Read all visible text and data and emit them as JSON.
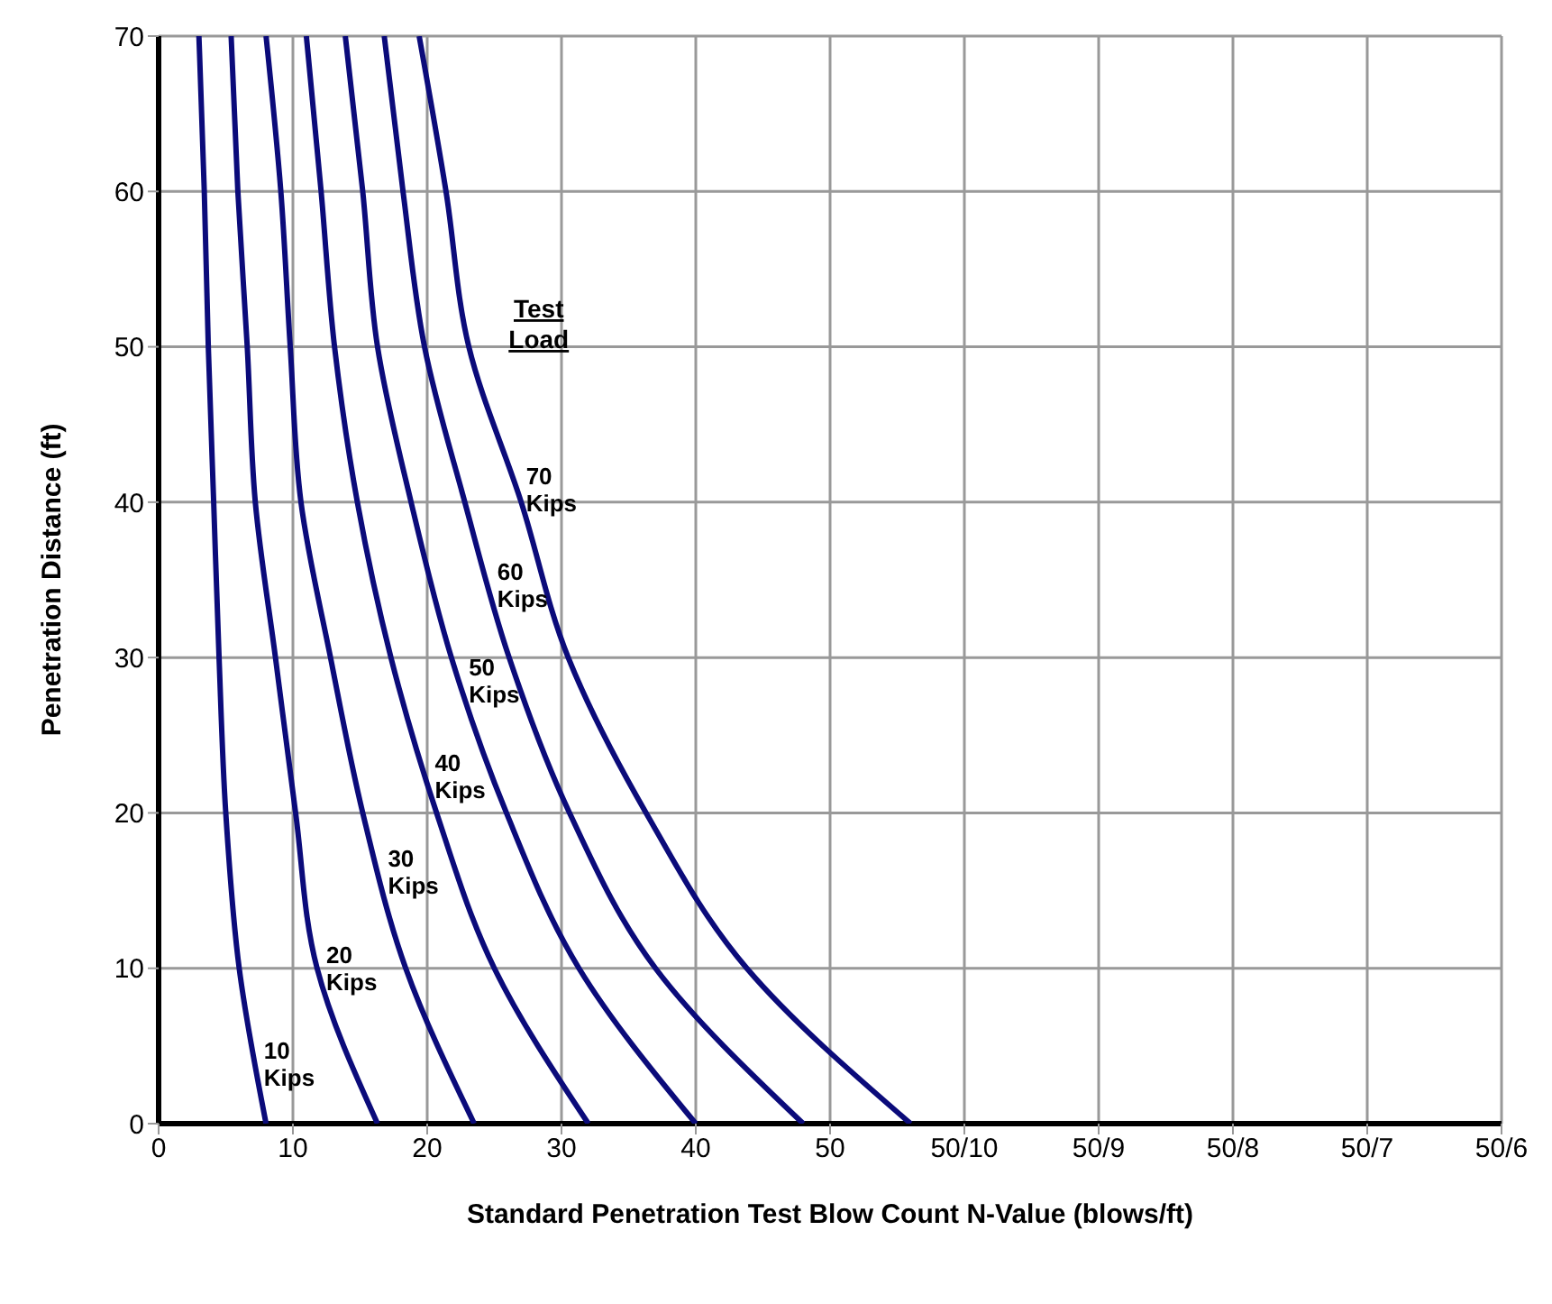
{
  "chart_data": {
    "type": "line",
    "xlabel": "Standard Penetration Test Blow Count N-Value (blows/ft)",
    "ylabel": "Penetration Distance (ft)",
    "legend_title": "Test Load",
    "xlim": [
      0,
      100
    ],
    "ylim": [
      0,
      70
    ],
    "xticks": [
      0,
      10,
      20,
      30,
      40,
      50,
      {
        "value": 60,
        "label": "50/10"
      },
      {
        "value": 70,
        "label": "50/9"
      },
      {
        "value": 80,
        "label": "50/8"
      },
      {
        "value": 90,
        "label": "50/7"
      },
      {
        "value": 100,
        "label": "50/6"
      }
    ],
    "yticks": [
      0,
      10,
      20,
      30,
      40,
      50,
      60,
      70
    ],
    "grid": true,
    "marker": "none",
    "line_style": "solid",
    "series": [
      {
        "name": "10 Kips",
        "color": "#0b0b7a",
        "x": [
          8,
          6,
          5,
          4.5,
          4.1,
          3.7,
          3.4,
          3
        ],
        "values": [
          0,
          10,
          20,
          30,
          40,
          50,
          60,
          70
        ]
      },
      {
        "name": "20 Kips",
        "color": "#0b0b7a",
        "x": [
          16.3,
          11.8,
          10.2,
          8.7,
          7.2,
          6.6,
          5.9,
          5.4
        ],
        "values": [
          0,
          10,
          20,
          30,
          40,
          50,
          60,
          70
        ]
      },
      {
        "name": "30 Kips",
        "color": "#0b0b7a",
        "x": [
          23.5,
          18.4,
          15.2,
          12.8,
          10.6,
          9.8,
          9.1,
          8
        ],
        "values": [
          0,
          10,
          20,
          30,
          40,
          50,
          60,
          70
        ]
      },
      {
        "name": "40 Kips",
        "color": "#0b0b7a",
        "x": [
          32,
          25,
          20.7,
          17.3,
          14.8,
          13.1,
          12.1,
          11
        ],
        "values": [
          0,
          10,
          20,
          30,
          40,
          50,
          60,
          70
        ]
      },
      {
        "name": "50 Kips",
        "color": "#0b0b7a",
        "x": [
          40,
          31.3,
          25.9,
          21.8,
          18.8,
          16.3,
          15.2,
          13.9
        ],
        "values": [
          0,
          10,
          20,
          30,
          40,
          50,
          60,
          70
        ]
      },
      {
        "name": "60 Kips",
        "color": "#0b0b7a",
        "x": [
          48,
          37,
          30.6,
          26.1,
          22.8,
          19.8,
          18.2,
          16.8
        ],
        "values": [
          0,
          10,
          20,
          30,
          40,
          50,
          60,
          70
        ]
      },
      {
        "name": "70 Kips",
        "color": "#0b0b7a",
        "x": [
          56,
          43.8,
          36.3,
          30.5,
          27,
          23.1,
          21.4,
          19.4
        ],
        "values": [
          0,
          10,
          20,
          30,
          40,
          50,
          60,
          70
        ]
      }
    ]
  }
}
